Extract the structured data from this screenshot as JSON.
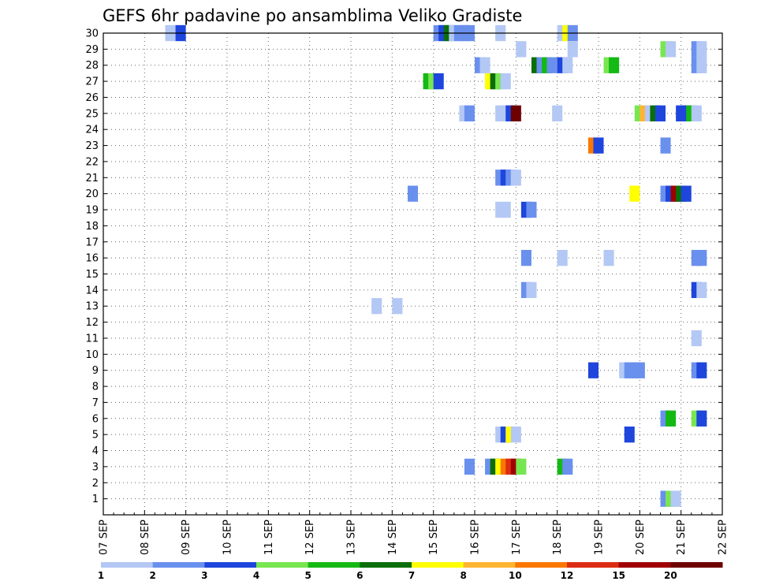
{
  "chart_data": {
    "type": "heatmap",
    "title": "GEFS 6hr padavine po ansamblima Veliko Gradiste",
    "xlabel": "",
    "ylabel": "",
    "x_range_days": [
      0,
      15
    ],
    "x_tick_labels": [
      "07 SEP",
      "08 SEP",
      "09 SEP",
      "10 SEP",
      "11 SEP",
      "12 SEP",
      "13 SEP",
      "14 SEP",
      "15 SEP",
      "16 SEP",
      "17 SEP",
      "18 SEP",
      "19 SEP",
      "20 SEP",
      "21 SEP",
      "22 SEP"
    ],
    "y_tick_labels": [
      "1",
      "2",
      "3",
      "4",
      "5",
      "6",
      "7",
      "8",
      "9",
      "10",
      "11",
      "12",
      "13",
      "14",
      "15",
      "16",
      "17",
      "18",
      "19",
      "20",
      "21",
      "22",
      "23",
      "24",
      "25",
      "26",
      "27",
      "28",
      "29",
      "30"
    ],
    "ylim": [
      0,
      30
    ],
    "grid": true,
    "steps_per_day": 4,
    "colorbar": {
      "labels": [
        "1",
        "2",
        "3",
        "4",
        "5",
        "6",
        "7",
        "8",
        "10",
        "12",
        "15",
        "20"
      ],
      "colors": [
        "#b4c8f5",
        "#6a90ee",
        "#1e46dc",
        "#78e650",
        "#14b914",
        "#0a6e0a",
        "#ffff00",
        "#ffb432",
        "#fa7800",
        "#dc2d14",
        "#a00000",
        "#6e0000"
      ]
    },
    "cells": [
      [
        30,
        0,
        "8 15:00"
      ],
      [
        30,
        2,
        "8 21:00"
      ],
      [
        30,
        1,
        "15 03:00"
      ],
      [
        30,
        2,
        "15 06:00"
      ],
      [
        30,
        5,
        "15 09:00"
      ],
      [
        30,
        0,
        "15 12:00"
      ],
      [
        30,
        1,
        "15 15:00"
      ],
      [
        30,
        1,
        "15 18:00"
      ],
      [
        30,
        1,
        "15 21:00"
      ],
      [
        30,
        0,
        "16 15:00"
      ],
      [
        30,
        0,
        "18 03:00"
      ],
      [
        30,
        6,
        "18 06:00"
      ],
      [
        30,
        1,
        "18 09:00"
      ],
      [
        29,
        0,
        "17 03:00"
      ],
      [
        29,
        0,
        "18 09:00"
      ],
      [
        29,
        3,
        "20 15:00"
      ],
      [
        29,
        0,
        "20 18:00"
      ],
      [
        29,
        1,
        "21 09:00"
      ],
      [
        29,
        0,
        "21 12:00"
      ],
      [
        28,
        1,
        "16 03:00"
      ],
      [
        28,
        0,
        "16 06:00"
      ],
      [
        28,
        5,
        "17 12:00"
      ],
      [
        28,
        1,
        "17 15:00"
      ],
      [
        28,
        4,
        "17 18:00"
      ],
      [
        28,
        1,
        "17 21:00"
      ],
      [
        28,
        2,
        "18 03:00"
      ],
      [
        28,
        0,
        "18 06:00"
      ],
      [
        28,
        3,
        "19 06:00"
      ],
      [
        28,
        4,
        "19 09:00"
      ],
      [
        28,
        1,
        "21 09:00"
      ],
      [
        28,
        0,
        "21 12:00"
      ],
      [
        27,
        4,
        "14 21:00"
      ],
      [
        27,
        3,
        "15 00:00"
      ],
      [
        27,
        2,
        "15 03:00"
      ],
      [
        27,
        6,
        "16 09:00"
      ],
      [
        27,
        5,
        "16 12:00"
      ],
      [
        27,
        3,
        "16 15:00"
      ],
      [
        27,
        0,
        "16 18:00"
      ],
      [
        25,
        0,
        "15 18:00"
      ],
      [
        25,
        1,
        "15 21:00"
      ],
      [
        25,
        0,
        "16 15:00"
      ],
      [
        25,
        0,
        "16 18:00"
      ],
      [
        25,
        2,
        "16 21:00"
      ],
      [
        25,
        11,
        "17 00:00"
      ],
      [
        25,
        0,
        "18 00:00"
      ],
      [
        25,
        3,
        "20 00:00"
      ],
      [
        25,
        7,
        "20 03:00"
      ],
      [
        25,
        0,
        "20 06:00"
      ],
      [
        25,
        5,
        "20 09:00"
      ],
      [
        25,
        2,
        "20 12:00"
      ],
      [
        25,
        2,
        "21 00:00"
      ],
      [
        25,
        2,
        "21 03:00"
      ],
      [
        25,
        4,
        "21 06:00"
      ],
      [
        25,
        0,
        "21 09:00"
      ],
      [
        23,
        8,
        "18 21:00"
      ],
      [
        23,
        2,
        "19 00:00"
      ],
      [
        23,
        1,
        "20 15:00"
      ],
      [
        21,
        1,
        "16 15:00"
      ],
      [
        21,
        2,
        "16 18:00"
      ],
      [
        21,
        1,
        "16 21:00"
      ],
      [
        21,
        0,
        "17 00:00"
      ],
      [
        20,
        1,
        "14 12:00"
      ],
      [
        20,
        6,
        "19 21:00"
      ],
      [
        20,
        1,
        "20 15:00"
      ],
      [
        20,
        2,
        "20 18:00"
      ],
      [
        20,
        10,
        "20 21:00"
      ],
      [
        20,
        5,
        "21 00:00"
      ],
      [
        20,
        2,
        "21 03:00"
      ],
      [
        19,
        0,
        "16 15:00"
      ],
      [
        19,
        0,
        "16 18:00"
      ],
      [
        19,
        2,
        "17 06:00"
      ],
      [
        19,
        1,
        "17 09:00"
      ],
      [
        16,
        1,
        "17 06:00"
      ],
      [
        16,
        0,
        "18 03:00"
      ],
      [
        16,
        0,
        "19 06:00"
      ],
      [
        16,
        1,
        "21 09:00"
      ],
      [
        16,
        1,
        "21 12:00"
      ],
      [
        14,
        1,
        "17 06:00"
      ],
      [
        14,
        0,
        "17 09:00"
      ],
      [
        14,
        2,
        "21 09:00"
      ],
      [
        14,
        0,
        "21 12:00"
      ],
      [
        13,
        0,
        "13 15:00"
      ],
      [
        13,
        0,
        "14 03:00"
      ],
      [
        11,
        0,
        "21 09:00"
      ],
      [
        9,
        2,
        "18 21:00"
      ],
      [
        9,
        0,
        "19 15:00"
      ],
      [
        9,
        1,
        "19 18:00"
      ],
      [
        9,
        1,
        "19 21:00"
      ],
      [
        9,
        1,
        "20 00:00"
      ],
      [
        9,
        1,
        "21 09:00"
      ],
      [
        9,
        2,
        "21 12:00"
      ],
      [
        6,
        1,
        "20 15:00"
      ],
      [
        6,
        4,
        "20 18:00"
      ],
      [
        6,
        3,
        "21 09:00"
      ],
      [
        6,
        2,
        "21 12:00"
      ],
      [
        5,
        0,
        "16 15:00"
      ],
      [
        5,
        2,
        "16 18:00"
      ],
      [
        5,
        6,
        "16 21:00"
      ],
      [
        5,
        0,
        "17 00:00"
      ],
      [
        5,
        2,
        "19 18:00"
      ],
      [
        3,
        1,
        "15 21:00"
      ],
      [
        3,
        1,
        "16 09:00"
      ],
      [
        3,
        5,
        "16 12:00"
      ],
      [
        3,
        6,
        "16 15:00"
      ],
      [
        3,
        8,
        "16 18:00"
      ],
      [
        3,
        9,
        "16 21:00"
      ],
      [
        3,
        10,
        "17 00:00"
      ],
      [
        3,
        3,
        "17 03:00"
      ],
      [
        3,
        4,
        "18 03:00"
      ],
      [
        3,
        1,
        "18 06:00"
      ],
      [
        1,
        1,
        "20 15:00"
      ],
      [
        1,
        3,
        "20 18:00"
      ],
      [
        1,
        0,
        "20 21:00"
      ]
    ]
  }
}
